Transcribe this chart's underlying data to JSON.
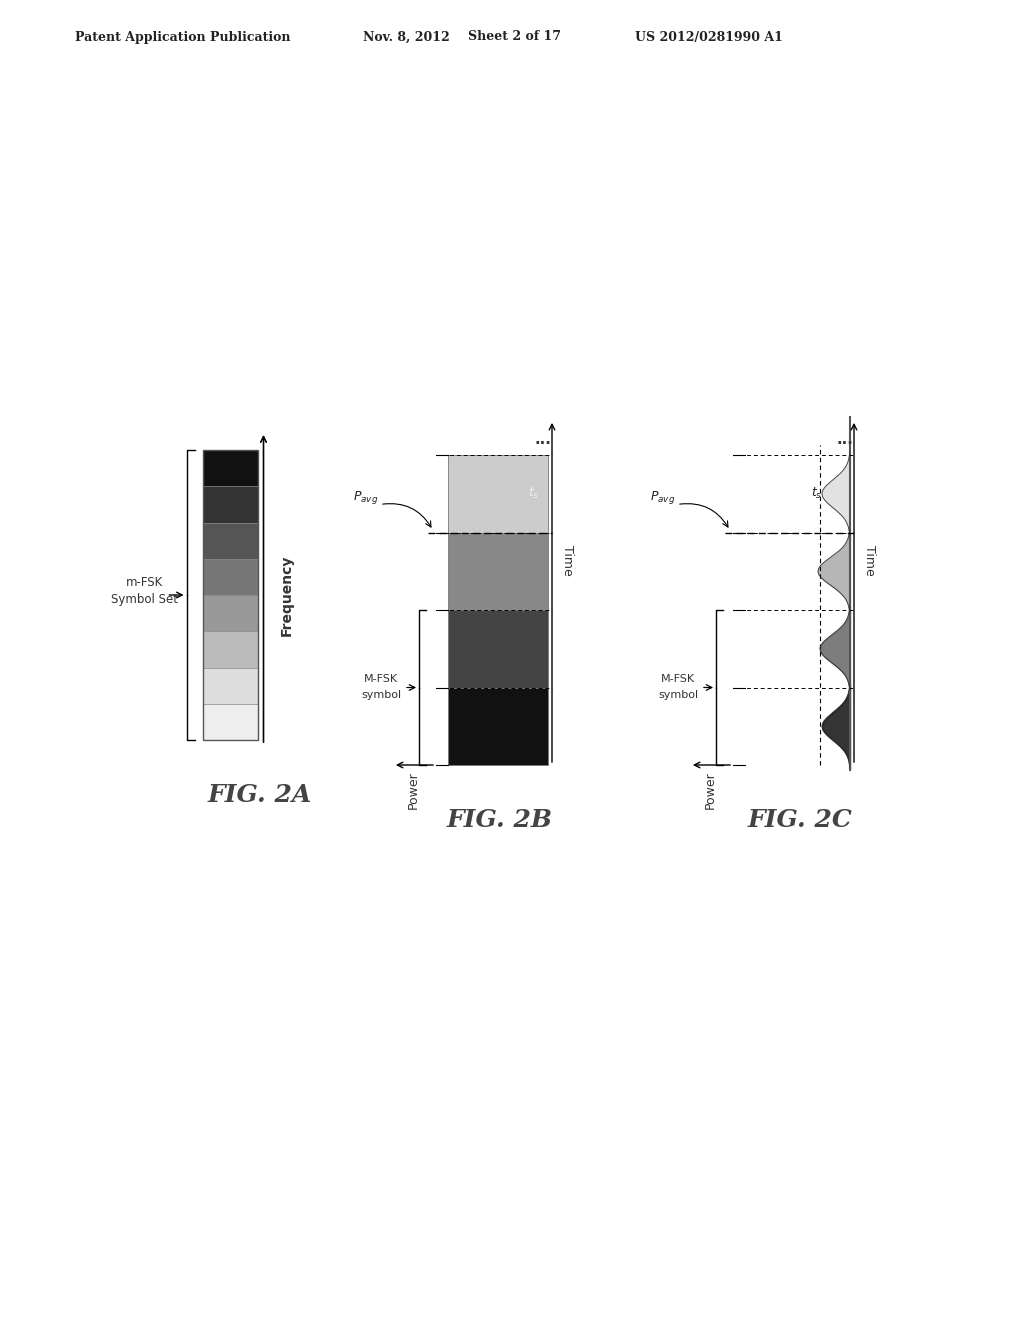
{
  "background_color": "#ffffff",
  "header_text": "Patent Application Publication",
  "header_date": "Nov. 8, 2012",
  "header_sheet": "Sheet 2 of 17",
  "header_patent": "US 2012/0281990 A1",
  "fig2a_label": "FIG. 2A",
  "fig2b_label": "FIG. 2B",
  "fig2c_label": "FIG. 2C",
  "freq_label": "Frequency",
  "power_label": "Power",
  "time_label": "Time",
  "pavg_label": "P_avg",
  "ts_label": "t_s",
  "band_colors_2a": [
    "#111111",
    "#333333",
    "#555555",
    "#777777",
    "#999999",
    "#bbbbbb",
    "#dddddd",
    "#eeeeee"
  ],
  "slot_colors_2b": [
    "#111111",
    "#444444",
    "#888888",
    "#cccccc"
  ]
}
